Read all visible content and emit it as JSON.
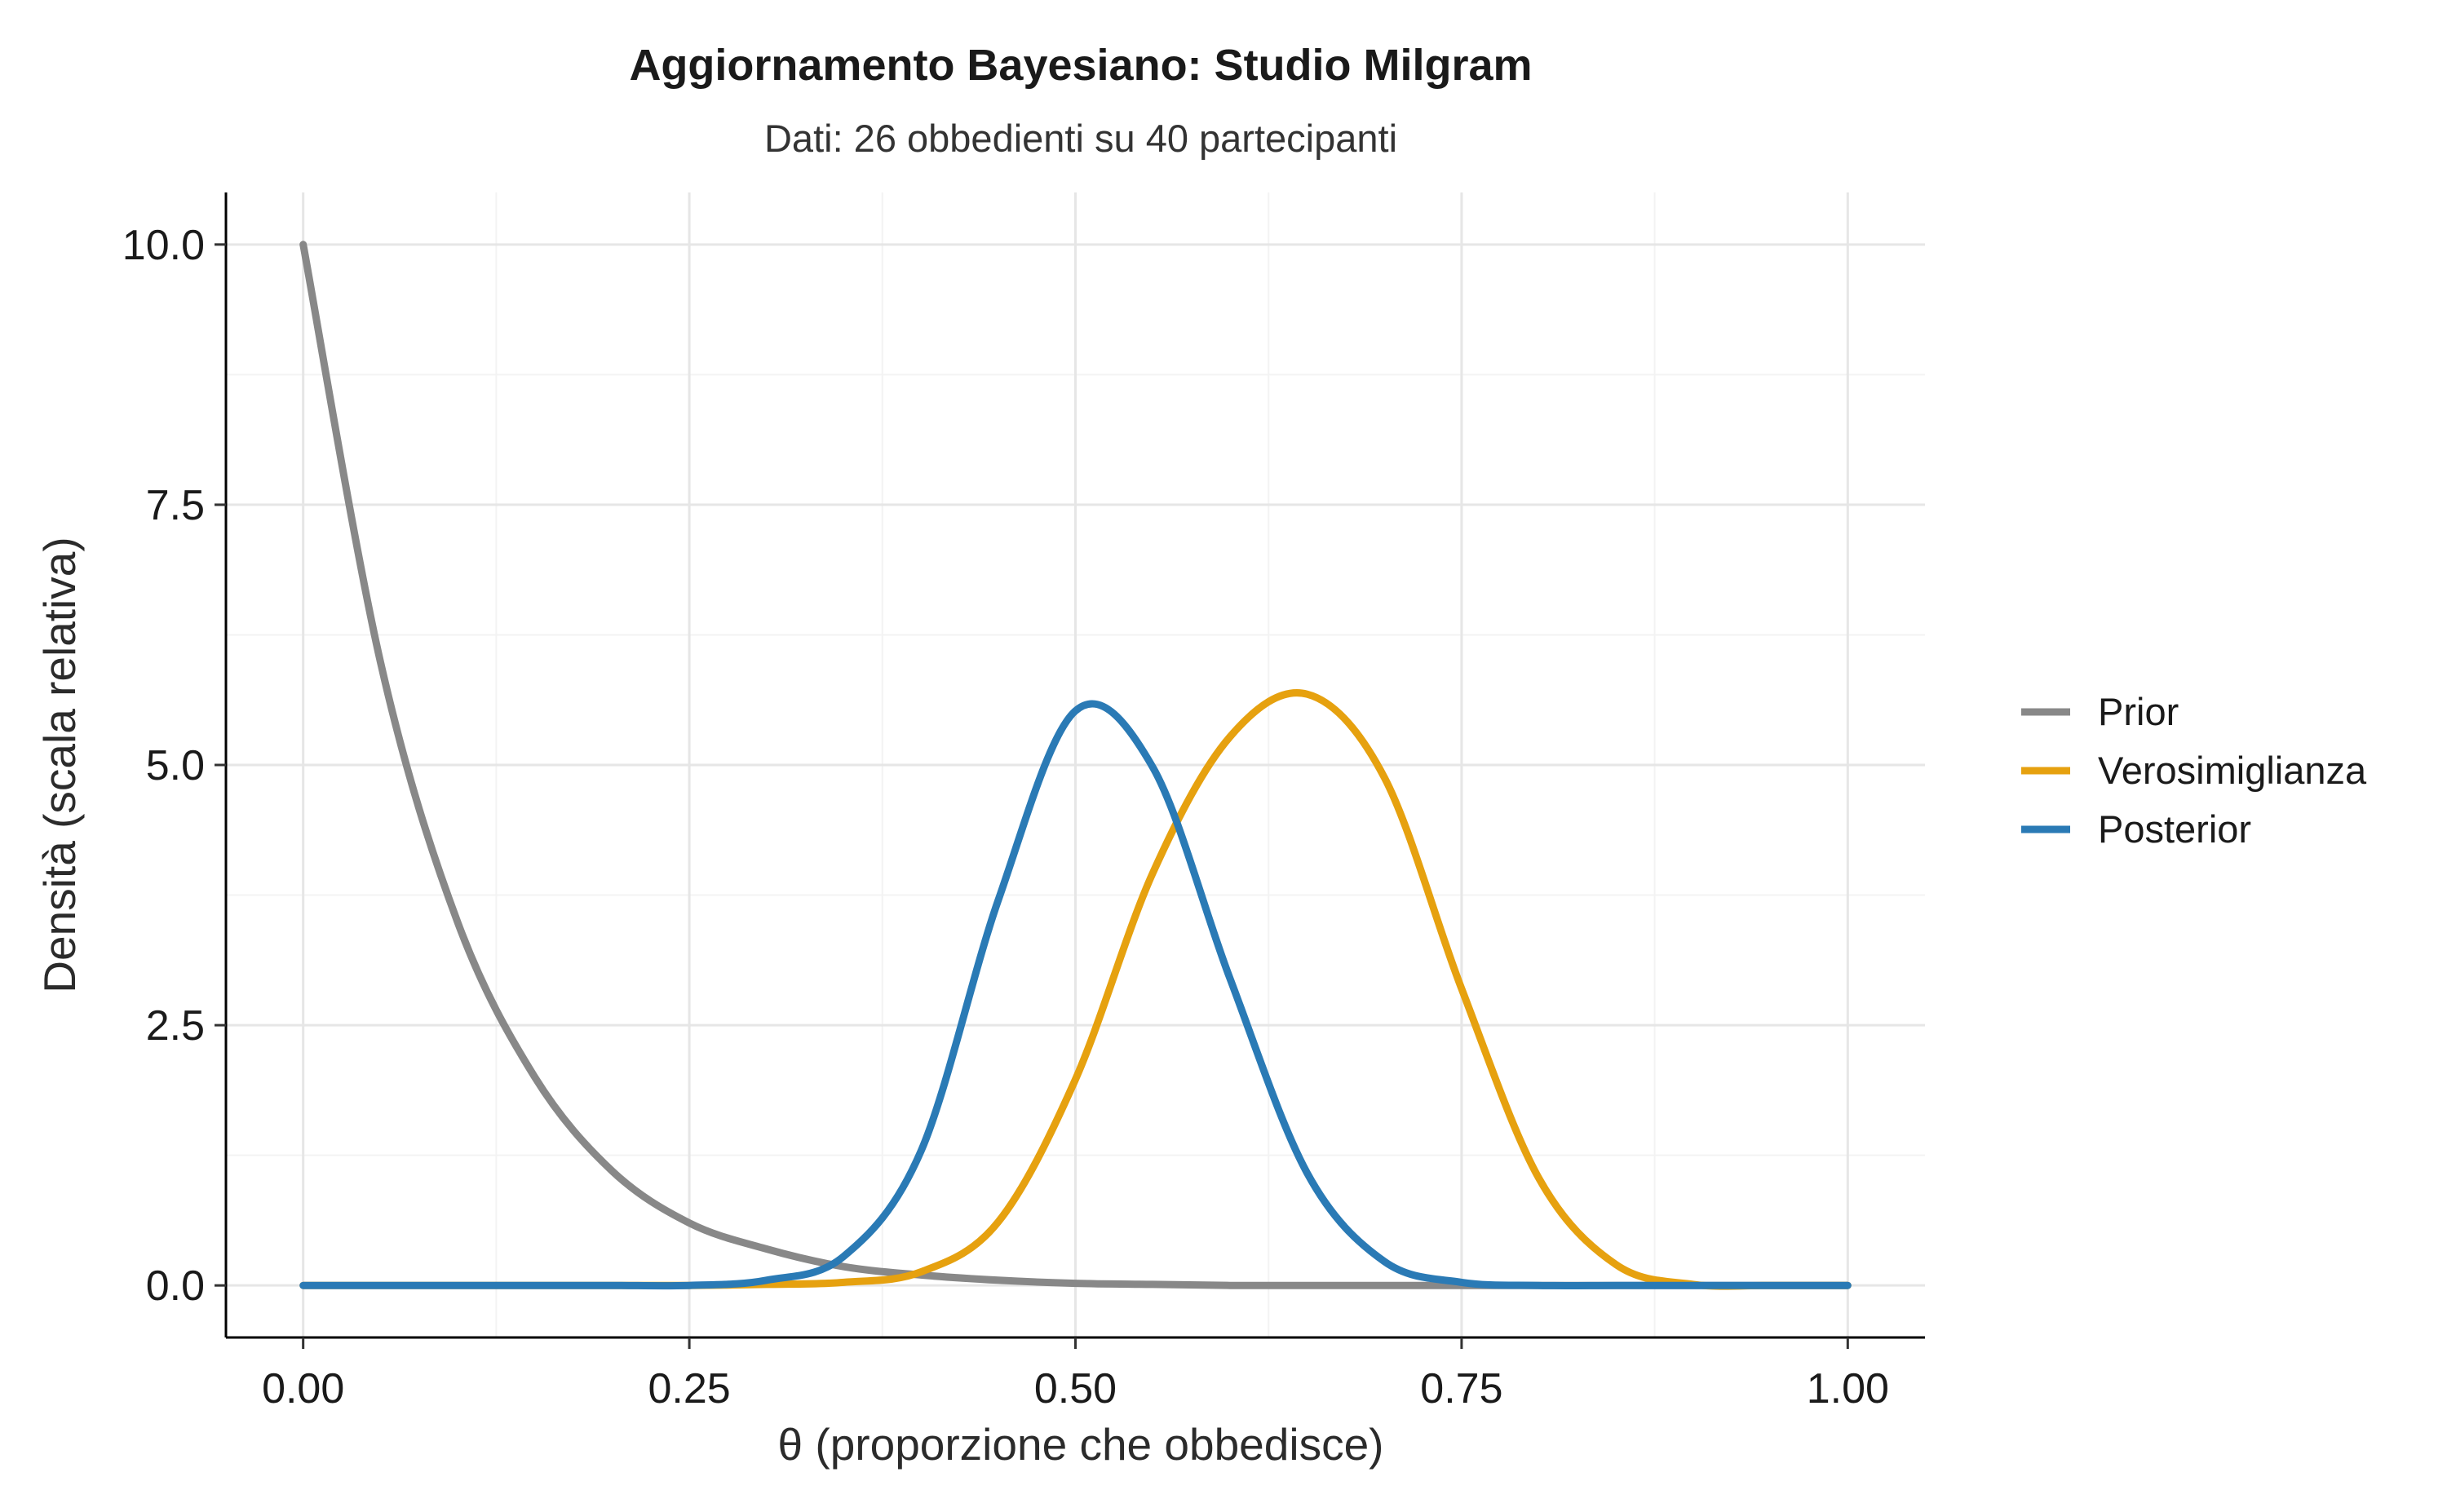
{
  "chart_data": {
    "type": "line",
    "title": "Aggiornamento Bayesiano: Studio Milgram",
    "subtitle": "Dati: 26 obbedienti su 40 partecipanti",
    "xlabel": "θ (proporzione che obbedisce)",
    "ylabel": "Densità (scala relativa)",
    "xlim": [
      -0.05,
      1.05
    ],
    "ylim": [
      -0.5,
      10.5
    ],
    "x_ticks": [
      0,
      0.25,
      0.5,
      0.75,
      1
    ],
    "x_tick_labels": [
      "0.00",
      "0.25",
      "0.50",
      "0.75",
      "1.00"
    ],
    "y_ticks": [
      0,
      2.5,
      5,
      7.5,
      10
    ],
    "y_tick_labels": [
      "0.0",
      "2.5",
      "5.0",
      "7.5",
      "10.0"
    ],
    "grid": true,
    "legend_position": "right",
    "x": [
      0,
      0.05,
      0.1,
      0.15,
      0.2,
      0.25,
      0.3,
      0.35,
      0.4,
      0.45,
      0.5,
      0.55,
      0.6,
      0.65,
      0.7,
      0.75,
      0.8,
      0.85,
      0.9,
      0.95,
      1
    ],
    "series": [
      {
        "name": "Prior",
        "color": "#888888",
        "values": [
          10,
          5.99,
          3.49,
          2.0,
          1.1,
          0.6,
          0.35,
          0.18,
          0.1,
          0.05,
          0.02,
          0.01,
          0,
          0,
          0,
          0,
          0,
          0,
          0,
          0,
          0
        ]
      },
      {
        "name": "Verosimiglianza",
        "color": "#E6A10F",
        "values": [
          0,
          0,
          0,
          0,
          0,
          0,
          0.01,
          0.03,
          0.13,
          0.61,
          1.98,
          3.96,
          5.27,
          5.68,
          4.88,
          2.85,
          1.03,
          0.2,
          0.01,
          0,
          0
        ]
      },
      {
        "name": "Posterior",
        "color": "#2A7AB5",
        "values": [
          0,
          0,
          0,
          0,
          0,
          0,
          0.05,
          0.28,
          1.29,
          3.7,
          5.52,
          4.98,
          2.95,
          1.08,
          0.23,
          0.03,
          0,
          0,
          0,
          0,
          0
        ]
      }
    ]
  }
}
